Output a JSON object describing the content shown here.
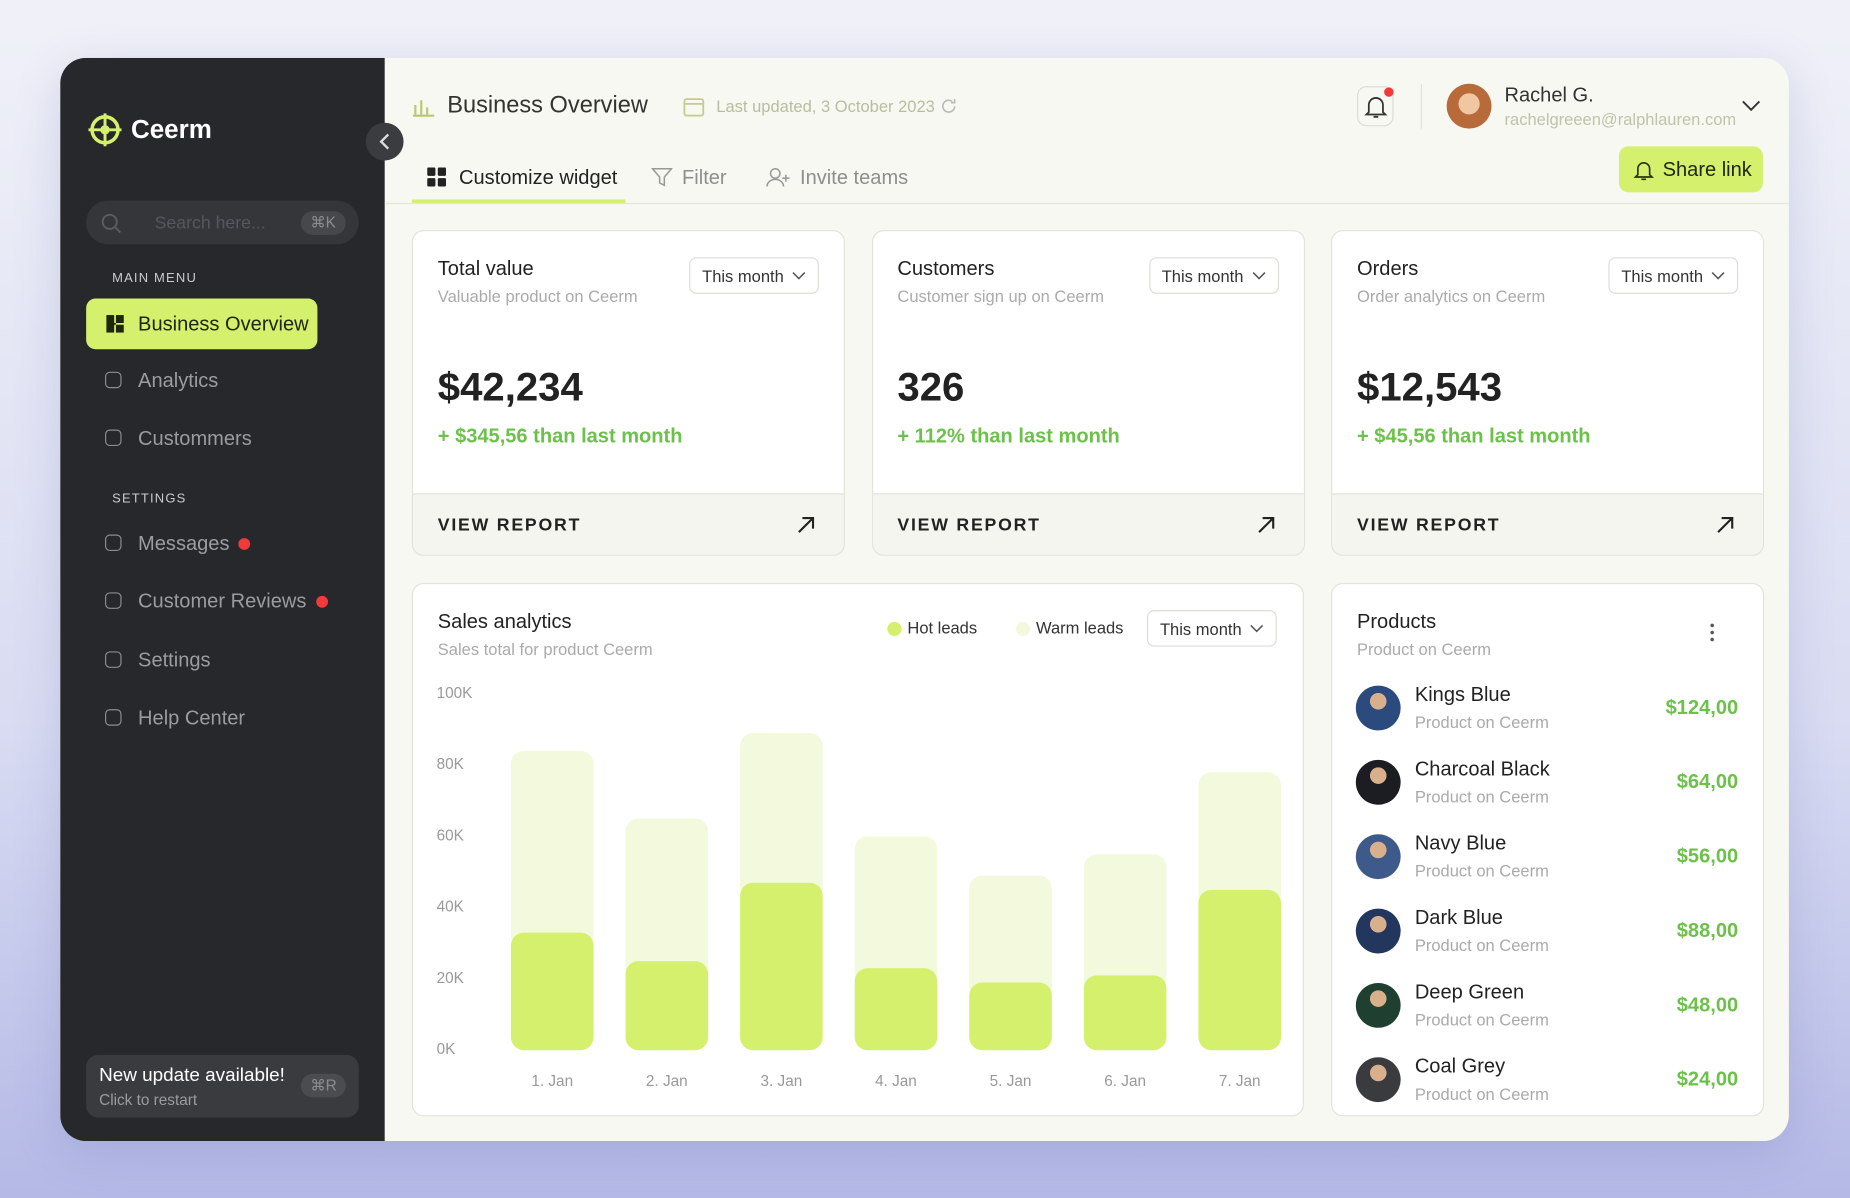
{
  "sidebar": {
    "brand": "Ceerm",
    "search_placeholder": "Search here...",
    "search_shortcut": "⌘K",
    "main_menu_label": "MAIN MENU",
    "main_menu": [
      "Business Overview",
      "Analytics",
      "Custommers"
    ],
    "settings_label": "SETTINGS",
    "settings_menu": [
      "Messages",
      "Customer Reviews",
      "Settings",
      "Help Center"
    ],
    "update": {
      "title": "New update available!",
      "subtitle": "Click to restart",
      "shortcut": "⌘R"
    }
  },
  "header": {
    "title": "Business Overview",
    "last_updated": "Last updated, 3 October 2023",
    "user_name": "Rachel G.",
    "user_email": "rachelgreeen@ralphlauren.com",
    "share": "Share link"
  },
  "tabs": [
    "Customize widget",
    "Filter",
    "Invite teams"
  ],
  "stat_cards": [
    {
      "title": "Total value",
      "subtitle": "Valuable product on Ceerm",
      "period": "This month",
      "value": "$42,234",
      "change": "+ $345,56 than last month",
      "link": "VIEW REPORT"
    },
    {
      "title": "Customers",
      "subtitle": "Customer sign up on Ceerm",
      "period": "This month",
      "value": "326",
      "change": "+ 112% than last month",
      "link": "VIEW REPORT"
    },
    {
      "title": "Orders",
      "subtitle": "Order analytics on Ceerm",
      "period": "This month",
      "value": "$12,543",
      "change": "+ $45,56 than last month",
      "link": "VIEW REPORT"
    }
  ],
  "chart_data": {
    "type": "bar",
    "stacked": true,
    "title": "Sales analytics",
    "subtitle": "Sales total for product Ceerm",
    "period": "This month",
    "categories": [
      "1. Jan",
      "2. Jan",
      "3. Jan",
      "4. Jan",
      "5. Jan",
      "6. Jan",
      "7. Jan"
    ],
    "series": [
      {
        "name": "Hot leads",
        "color": "#d4f06c",
        "values": [
          33,
          25,
          47,
          23,
          19,
          21,
          45
        ]
      },
      {
        "name": "Warm leads",
        "color": "#f3f9dc",
        "values": [
          51,
          40,
          42,
          37,
          30,
          34,
          33
        ]
      }
    ],
    "ylim": [
      0,
      100
    ],
    "yticks": [
      {
        "value": 0,
        "label": "0K"
      },
      {
        "value": 20,
        "label": "20K"
      },
      {
        "value": 40,
        "label": "40K"
      },
      {
        "value": 60,
        "label": "60K"
      },
      {
        "value": 80,
        "label": "80K"
      },
      {
        "value": 100,
        "label": "100K"
      }
    ]
  },
  "products": {
    "title": "Products",
    "subtitle": "Product on Ceerm",
    "items": [
      {
        "name": "Kings Blue",
        "subtitle": "Product on Ceerm",
        "price": "$124,00"
      },
      {
        "name": "Charcoal Black",
        "subtitle": "Product on Ceerm",
        "price": "$64,00"
      },
      {
        "name": "Navy Blue",
        "subtitle": "Product on Ceerm",
        "price": "$56,00"
      },
      {
        "name": "Dark Blue",
        "subtitle": "Product on Ceerm",
        "price": "$88,00"
      },
      {
        "name": "Deep Green",
        "subtitle": "Product on Ceerm",
        "price": "$48,00"
      },
      {
        "name": "Coal Grey",
        "subtitle": "Product on Ceerm",
        "price": "$24,00"
      }
    ]
  }
}
